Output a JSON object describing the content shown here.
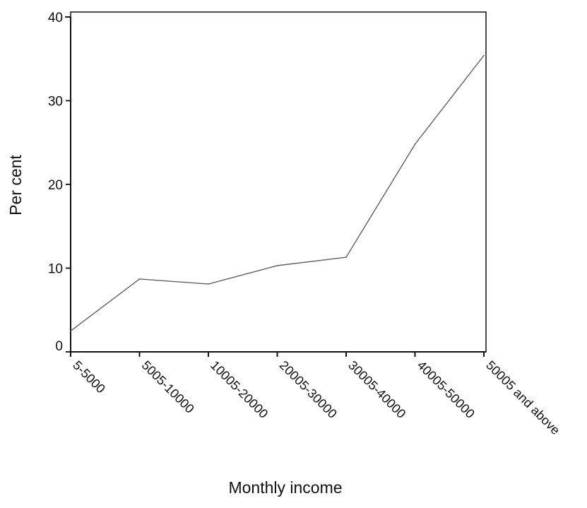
{
  "chart_data": {
    "type": "line",
    "title": "",
    "xlabel": "Monthly income",
    "ylabel": "Per cent",
    "categories": [
      "5-5000",
      "5005-10000",
      "10005-20000",
      "20005-30000",
      "30005-40000",
      "40005-50000",
      "50005 and above"
    ],
    "series": [
      {
        "values": [
          2.5,
          8.7,
          8.1,
          10.3,
          11.3,
          24.8,
          35.4
        ]
      }
    ],
    "ylim": [
      0,
      40
    ],
    "yticks": [
      0,
      10,
      20,
      30,
      40
    ],
    "grid": false,
    "legend": "none",
    "line_color": "#555555"
  }
}
